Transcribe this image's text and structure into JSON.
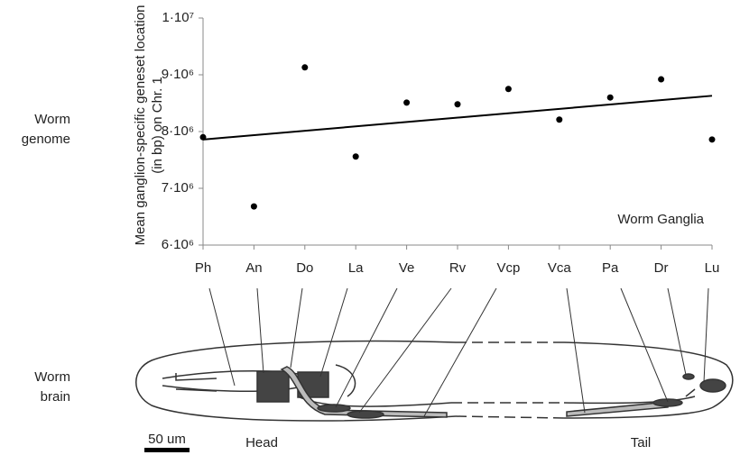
{
  "chart_data": {
    "type": "scatter",
    "y_label": "Mean ganglion-specific geneset location (in bp) on Chr. 1",
    "x_label": "Worm Ganglia",
    "categories": [
      "Ph",
      "An",
      "Do",
      "La",
      "Ve",
      "Rv",
      "Vcp",
      "Vca",
      "Pa",
      "Dr",
      "Lu"
    ],
    "values": [
      7900000,
      6680000,
      9130000,
      7560000,
      8510000,
      8480000,
      8750000,
      8210000,
      8600000,
      8920000,
      7860000
    ],
    "color": "#000000",
    "trend_line": [
      7860000,
      8630000
    ],
    "ylim": [
      6000000,
      10000000
    ],
    "yticks": [
      {
        "value": 6000000,
        "label": "6·10⁶"
      },
      {
        "value": 7000000,
        "label": "7·10⁶"
      },
      {
        "value": 8000000,
        "label": "8·10⁶"
      },
      {
        "value": 9000000,
        "label": "9·10⁶"
      },
      {
        "value": 10000000,
        "label": "1·10⁷"
      }
    ]
  },
  "labels": {
    "genome": "Worm genome",
    "brain": "Worm brain",
    "scale": "50 um",
    "head": "Head",
    "tail": "Tail"
  }
}
